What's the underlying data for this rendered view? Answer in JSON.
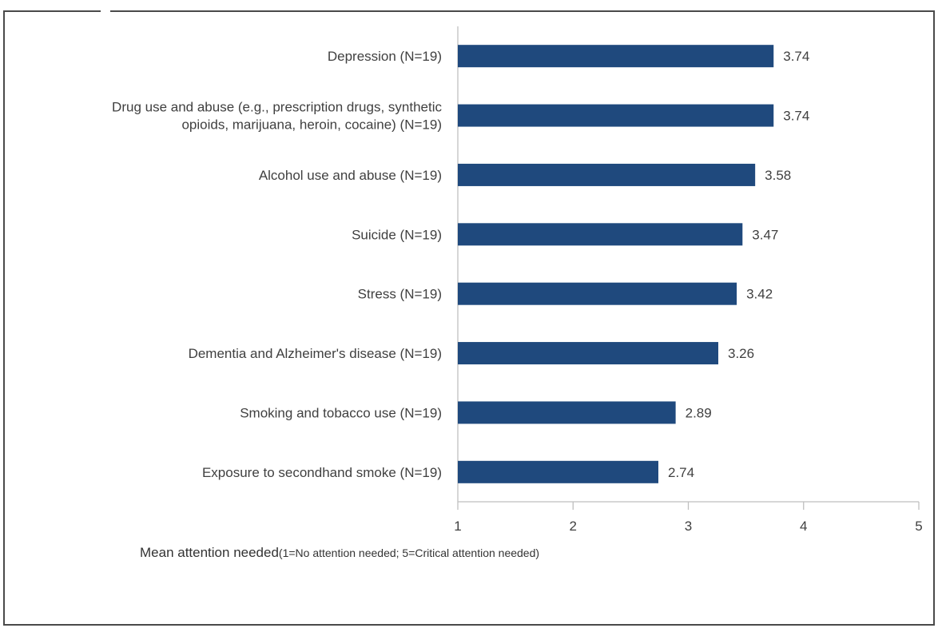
{
  "chart_data": {
    "type": "bar",
    "orientation": "horizontal",
    "title": "",
    "categories": [
      "Depression (N=19)",
      "Drug use and abuse (e.g., prescription drugs, synthetic opioids, marijuana, heroin, cocaine) (N=19)",
      "Alcohol use and abuse (N=19)",
      "Suicide (N=19)",
      "Stress (N=19)",
      "Dementia and Alzheimer's disease (N=19)",
      "Smoking and tobacco use (N=19)",
      "Exposure to secondhand smoke (N=19)"
    ],
    "category_lines": [
      [
        "Depression (N=19)"
      ],
      [
        "Drug use and abuse (e.g., prescription drugs, synthetic",
        "opioids, marijuana, heroin, cocaine) (N=19)"
      ],
      [
        "Alcohol use and abuse (N=19)"
      ],
      [
        "Suicide (N=19)"
      ],
      [
        "Stress (N=19)"
      ],
      [
        "Dementia and Alzheimer's disease (N=19)"
      ],
      [
        "Smoking and tobacco use (N=19)"
      ],
      [
        "Exposure to secondhand smoke (N=19)"
      ]
    ],
    "values": [
      3.74,
      3.74,
      3.58,
      3.47,
      3.42,
      3.26,
      2.89,
      2.74
    ],
    "data_labels": [
      "3.74",
      "3.74",
      "3.58",
      "3.47",
      "3.42",
      "3.26",
      "2.89",
      "2.74"
    ],
    "xlim": [
      1,
      5
    ],
    "xticks": [
      1,
      2,
      3,
      4,
      5
    ],
    "xlabel_main": "Mean attention needed",
    "xlabel_note": "(1=No attention needed; 5=Critical attention needed)",
    "grid": false,
    "bar_color": "#1f497d",
    "axis_color": "#bfbfbf",
    "text_color": "#404040"
  }
}
